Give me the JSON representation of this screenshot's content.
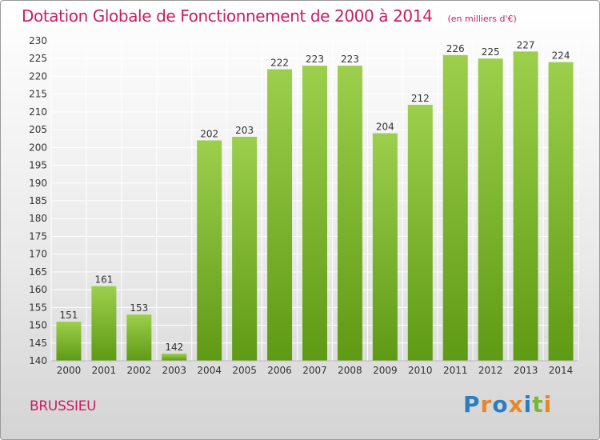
{
  "header": {
    "title": "Dotation Globale de Fonctionnement de 2000 à 2014",
    "subtitle": "(en milliers d'€)"
  },
  "footer": {
    "commune": "BRUSSIEU",
    "logo_text": "Proxiti"
  },
  "colors": {
    "title": "#c71e64",
    "bar_light": "#9ccf4c",
    "bar_dark": "#5f9a14",
    "grid": "#ffffff",
    "axis_text": "#333333",
    "logo_letters": [
      "#2b7ec1",
      "#e8862a",
      "#2b7ec1",
      "#e8862a",
      "#2b7ec1",
      "#7ab536",
      "#e8862a"
    ]
  },
  "chart_data": {
    "type": "bar",
    "title": "Dotation Globale de Fonctionnement de 2000 à 2014",
    "subtitle": "(en milliers d'€)",
    "categories": [
      "2000",
      "2001",
      "2002",
      "2003",
      "2004",
      "2005",
      "2006",
      "2007",
      "2008",
      "2009",
      "2010",
      "2011",
      "2012",
      "2013",
      "2014"
    ],
    "values": [
      151,
      161,
      153,
      142,
      202,
      203,
      222,
      223,
      223,
      204,
      212,
      226,
      225,
      227,
      224
    ],
    "data_labels": [
      "151",
      "161",
      "153",
      "142",
      "202",
      "203",
      "222",
      "223",
      "223",
      "204",
      "212",
      "226",
      "225",
      "227",
      "224"
    ],
    "ylim": [
      140,
      230
    ],
    "yticks": [
      "140",
      "145",
      "150",
      "155",
      "160",
      "165",
      "170",
      "175",
      "180",
      "185",
      "190",
      "195",
      "200",
      "205",
      "210",
      "215",
      "220",
      "225",
      "230"
    ],
    "grid": true,
    "xlabel": "",
    "ylabel": ""
  }
}
